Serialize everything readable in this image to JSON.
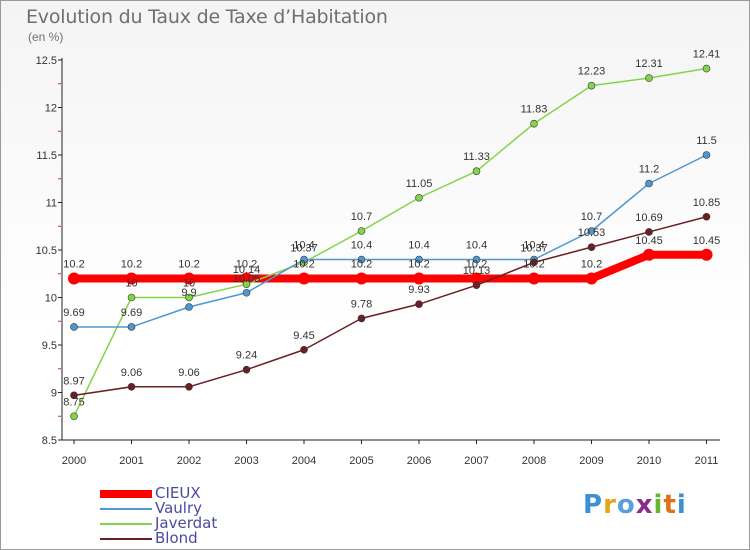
{
  "title": "Evolution du Taux de Taxe d’Habitation",
  "subtitle": "(en %)",
  "chart_data": {
    "type": "line",
    "x": [
      "2000",
      "2001",
      "2002",
      "2003",
      "2004",
      "2005",
      "2006",
      "2007",
      "2008",
      "2009",
      "2010",
      "2011"
    ],
    "ylim": [
      8.5,
      12.5
    ],
    "yticks": [
      "8.5",
      "9",
      "9.5",
      "10",
      "10.5",
      "11",
      "11.5",
      "12",
      "12.5"
    ],
    "grid": false,
    "legend_position": "bottom-left",
    "series": [
      {
        "name": "CIEUX",
        "color": "#ff0000",
        "values": [
          10.2,
          10.2,
          10.2,
          10.2,
          10.2,
          10.2,
          10.2,
          10.2,
          10.2,
          10.2,
          10.45,
          10.45
        ],
        "labels": [
          "10.2",
          "10.2",
          "10.2",
          "10.2",
          "10.2",
          "10.2",
          "10.2",
          "10.2",
          "10.2",
          "10.2",
          "10.45",
          "10.45"
        ]
      },
      {
        "name": "Vaulry",
        "color": "#4f97d1",
        "values": [
          9.69,
          9.69,
          9.9,
          10.05,
          10.4,
          10.4,
          10.4,
          10.4,
          10.4,
          10.7,
          11.2,
          11.5
        ],
        "labels": [
          "9.69",
          "9.69",
          "9.9",
          "10.05",
          "10.4",
          "10.4",
          "10.4",
          "10.4",
          "10.4",
          "10.7",
          "11.2",
          "11.5"
        ]
      },
      {
        "name": "Javerdat",
        "color": "#84d44a",
        "values": [
          8.75,
          10,
          10,
          10.14,
          10.37,
          10.7,
          11.05,
          11.33,
          11.83,
          12.23,
          12.31,
          12.41
        ],
        "labels": [
          "8.75",
          "10",
          "10",
          "10.14",
          "10.37",
          "10.7",
          "11.05",
          "11.33",
          "11.83",
          "12.23",
          "12.31",
          "12.41"
        ]
      },
      {
        "name": "Blond",
        "color": "#6b1f24",
        "values": [
          8.97,
          9.06,
          9.06,
          9.24,
          9.45,
          9.78,
          9.93,
          10.13,
          10.37,
          10.53,
          10.69,
          10.85
        ],
        "labels": [
          "8.97",
          "9.06",
          "9.06",
          "9.24",
          "9.45",
          "9.78",
          "9.93",
          "10.13",
          "10.37",
          "10.53",
          "10.69",
          "10.85"
        ]
      }
    ]
  },
  "logo": {
    "letters": [
      "P",
      "r",
      "o",
      "x",
      "i",
      "t",
      "i"
    ],
    "colors": [
      "#3b8fd6",
      "#e8a21c",
      "#5aa0e0",
      "#8a2d8a",
      "#69b52e",
      "#e0701a",
      "#3b8fd6"
    ]
  }
}
